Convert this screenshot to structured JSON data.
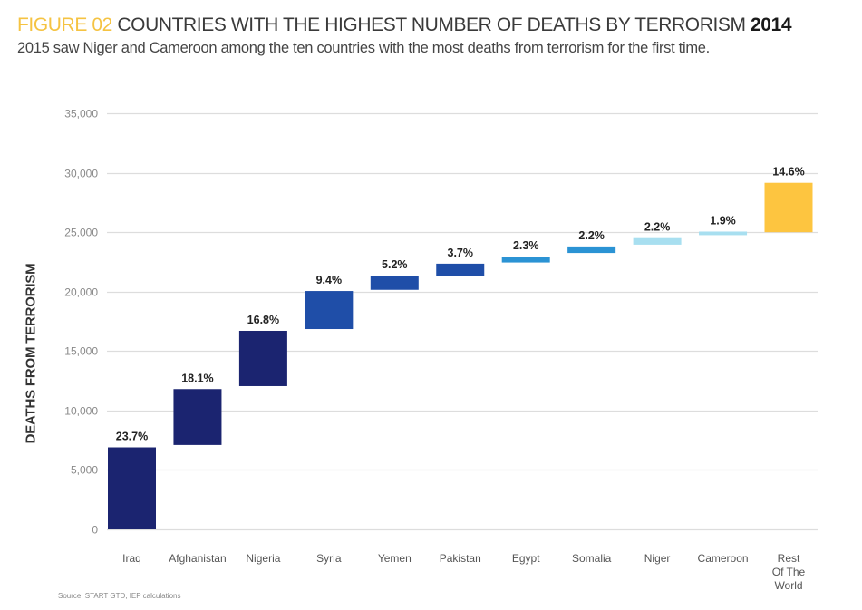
{
  "header": {
    "figure_label": "FIGURE 02",
    "title_main": " COUNTRIES WITH THE HIGHEST NUMBER OF DEATHS BY TERRORISM ",
    "title_year": "2014",
    "subtitle": "2015 saw Niger and Cameroon among the ten countries with the most deaths from terrorism for the first time."
  },
  "source": "Source: START GTD, IEP calculations",
  "colors": {
    "figure_label": "#f5c342",
    "navy": "#1b2470",
    "blue": "#1f4ea8",
    "bright_blue": "#2b93d4",
    "light_blue": "#a8dff0",
    "yellow": "#fdc540",
    "gridline": "#dddddd"
  },
  "chart_data": {
    "type": "bar",
    "subtype": "waterfall",
    "title": "COUNTRIES WITH THE HIGHEST NUMBER OF DEATHS BY TERRORISM 2014",
    "xlabel": "",
    "ylabel": "DEATHS FROM TERRORISM",
    "ylim": [
      0,
      35000
    ],
    "yticks": [
      0,
      5000,
      10000,
      15000,
      20000,
      25000,
      30000,
      35000
    ],
    "ytick_labels": [
      "0",
      "5,000",
      "10,000",
      "15,000",
      "20,000",
      "25,000",
      "30,000",
      "35,000"
    ],
    "grid": true,
    "legend": "none",
    "categories": [
      "Iraq",
      "Afghanistan",
      "Nigeria",
      "Syria",
      "Yemen",
      "Pakistan",
      "Egypt",
      "Somalia",
      "Niger",
      "Cameroon",
      "Rest Of The World"
    ],
    "category_lines": [
      [
        "Iraq"
      ],
      [
        "Afghanistan"
      ],
      [
        "Nigeria"
      ],
      [
        "Syria"
      ],
      [
        "Yemen"
      ],
      [
        "Pakistan"
      ],
      [
        "Egypt"
      ],
      [
        "Somalia"
      ],
      [
        "Niger"
      ],
      [
        "Cameroon"
      ],
      [
        "Rest",
        "Of The",
        "World"
      ]
    ],
    "bar_start": [
      0,
      7100,
      12050,
      16850,
      20150,
      21350,
      22450,
      23250,
      23950,
      24750,
      25000
    ],
    "bar_end": [
      6900,
      11800,
      16700,
      20050,
      21350,
      22350,
      22950,
      23800,
      24500,
      25050,
      29150
    ],
    "data_labels": [
      "23.7%",
      "18.1%",
      "16.8%",
      "9.4%",
      "5.2%",
      "3.7%",
      "2.3%",
      "2.2%",
      "2.2%",
      "1.9%",
      "14.6%"
    ],
    "bar_color_keys": [
      "navy",
      "navy",
      "navy",
      "blue",
      "blue",
      "blue",
      "bright_blue",
      "bright_blue",
      "light_blue",
      "light_blue",
      "yellow"
    ]
  }
}
